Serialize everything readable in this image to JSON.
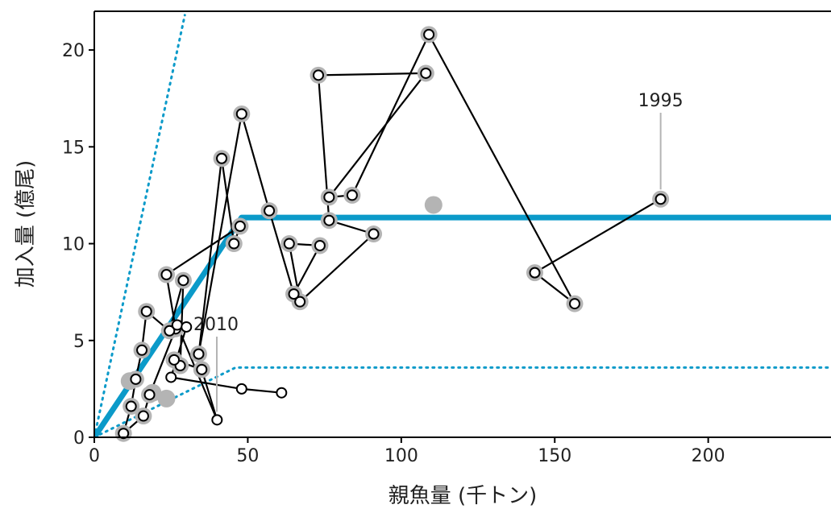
{
  "chart_data": {
    "type": "scatter",
    "xlabel": "親魚量 (千トン)",
    "ylabel": "加入量 (億尾)",
    "xlim": [
      0,
      240
    ],
    "ylim": [
      0,
      22
    ],
    "x_ticks": [
      0,
      50,
      100,
      150,
      200
    ],
    "y_ticks": [
      0,
      5,
      10,
      15,
      20
    ],
    "grid": false,
    "colors": {
      "hockey_stick": "#0b9ac9",
      "bound_lines": "#0b9ac9",
      "trajectory": "#000000",
      "points_fill": "#ffffff",
      "halo": "#b4b4b4"
    },
    "series": [
      {
        "style": "hockey-stick-fit",
        "x": [
          0,
          48,
          240
        ],
        "y": [
          0,
          11.35,
          11.35
        ]
      },
      {
        "style": "dotted-upper-bound",
        "x": [
          0,
          29.5
        ],
        "y": [
          0,
          21.8
        ]
      },
      {
        "style": "dotted-lower-bound",
        "x": [
          0,
          46,
          240
        ],
        "y": [
          0,
          3.6,
          3.6
        ]
      },
      {
        "style": "yearly-trajectory",
        "x": [
          184.5,
          143.5,
          156.5,
          109,
          84,
          76.5,
          108,
          73,
          76.5,
          91,
          67,
          63.5,
          73.5,
          65,
          57,
          48,
          34,
          41.5,
          45.5,
          47.5,
          23.5,
          26.5,
          18,
          16,
          9.5,
          12,
          13.5,
          15.5,
          17,
          24.5,
          29,
          28,
          26,
          35,
          40,
          27,
          30,
          25,
          48,
          61
        ],
        "y": [
          12.3,
          8.5,
          6.9,
          20.8,
          12.5,
          12.4,
          18.8,
          18.7,
          11.2,
          10.5,
          7.0,
          10.0,
          9.9,
          7.4,
          11.7,
          16.7,
          4.3,
          14.4,
          10.0,
          10.9,
          8.4,
          5.6,
          2.2,
          1.1,
          0.2,
          1.6,
          3.0,
          4.5,
          6.5,
          5.5,
          8.1,
          3.7,
          4.0,
          3.5,
          0.9,
          5.8,
          5.7,
          3.1,
          2.5,
          2.3
        ]
      }
    ],
    "extra_halo_points": {
      "x": [
        23.5,
        110.5,
        11.5,
        19
      ],
      "y": [
        2.0,
        12.0,
        2.9,
        2.3
      ]
    },
    "annotations": [
      {
        "text": "1995",
        "x": 184.5,
        "y": 12.3
      },
      {
        "text": "2010",
        "x": 40,
        "y": 0.9
      }
    ]
  }
}
